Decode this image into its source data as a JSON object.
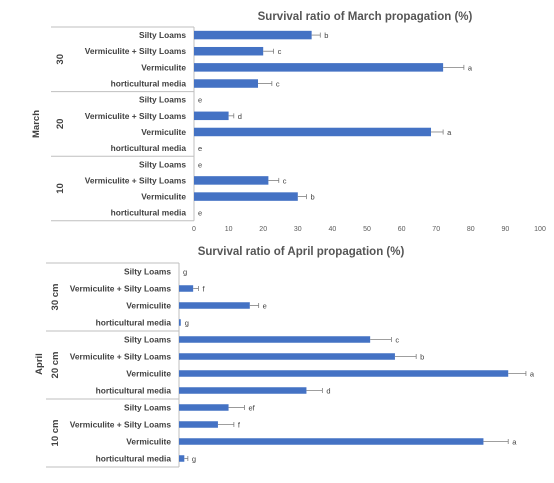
{
  "colors": {
    "bar": "#4472C4",
    "axis": "#bfbfbf",
    "text": "#404040",
    "error": "#7f7f7f"
  },
  "chart_data": [
    {
      "type": "bar",
      "orientation": "horizontal",
      "title": "Survival ratio of March propagation (%)",
      "month_label": "March",
      "xlim": [
        0,
        100
      ],
      "x_ticks": [
        "0",
        "10",
        "20",
        "30",
        "40",
        "50",
        "60",
        "70",
        "80",
        "90",
        "100"
      ],
      "groups": [
        {
          "label": "30",
          "items": [
            {
              "category": "Silty Loams",
              "value": 34,
              "error": 2.5,
              "letter": "b"
            },
            {
              "category": "Vermiculite + Silty Loams",
              "value": 20,
              "error": 3,
              "letter": "c"
            },
            {
              "category": "Vermiculite",
              "value": 72,
              "error": 6,
              "letter": "a"
            },
            {
              "category": "horticultural media",
              "value": 18.5,
              "error": 4,
              "letter": "c"
            }
          ]
        },
        {
          "label": "20",
          "items": [
            {
              "category": "Silty Loams",
              "value": 0,
              "error": 0,
              "letter": "e"
            },
            {
              "category": "Vermiculite + Silty Loams",
              "value": 10,
              "error": 1.5,
              "letter": "d"
            },
            {
              "category": "Vermiculite",
              "value": 68.5,
              "error": 3.5,
              "letter": "a"
            },
            {
              "category": "horticultural media",
              "value": 0,
              "error": 0,
              "letter": "e"
            }
          ]
        },
        {
          "label": "10",
          "items": [
            {
              "category": "Silty Loams",
              "value": 0,
              "error": 0,
              "letter": "e"
            },
            {
              "category": "Vermiculite + Silty Loams",
              "value": 21.5,
              "error": 3,
              "letter": "c"
            },
            {
              "category": "Vermiculite",
              "value": 30,
              "error": 2.5,
              "letter": "b"
            },
            {
              "category": "horticultural media",
              "value": 0,
              "error": 0,
              "letter": "e"
            }
          ]
        }
      ]
    },
    {
      "type": "bar",
      "orientation": "horizontal",
      "title": "Survival ratio of April propagation (%)",
      "month_label": "April",
      "xlim": [
        0,
        100
      ],
      "groups": [
        {
          "label": "30 cm",
          "items": [
            {
              "category": "Silty Loams",
              "value": 0,
              "error": 0,
              "letter": "g"
            },
            {
              "category": "Vermiculite + Silty Loams",
              "value": 4,
              "error": 1.5,
              "letter": "f"
            },
            {
              "category": "Vermiculite",
              "value": 20,
              "error": 2.5,
              "letter": "e"
            },
            {
              "category": "horticultural media",
              "value": 0.5,
              "error": 0,
              "letter": "g"
            }
          ]
        },
        {
          "label": "20 cm",
          "items": [
            {
              "category": "Silty Loams",
              "value": 54,
              "error": 6,
              "letter": "c"
            },
            {
              "category": "Vermiculite + Silty Loams",
              "value": 61,
              "error": 6,
              "letter": "b"
            },
            {
              "category": "Vermiculite",
              "value": 93,
              "error": 5,
              "letter": "a"
            },
            {
              "category": "horticultural media",
              "value": 36,
              "error": 4.5,
              "letter": "d"
            }
          ]
        },
        {
          "label": "10 cm",
          "items": [
            {
              "category": "Silty Loams",
              "value": 14,
              "error": 4.5,
              "letter": "ef"
            },
            {
              "category": "Vermiculite + Silty Loams",
              "value": 11,
              "error": 4.5,
              "letter": "f"
            },
            {
              "category": "Vermiculite",
              "value": 86,
              "error": 7,
              "letter": "a"
            },
            {
              "category": "horticultural media",
              "value": 1.5,
              "error": 1,
              "letter": "g"
            }
          ]
        }
      ]
    }
  ]
}
